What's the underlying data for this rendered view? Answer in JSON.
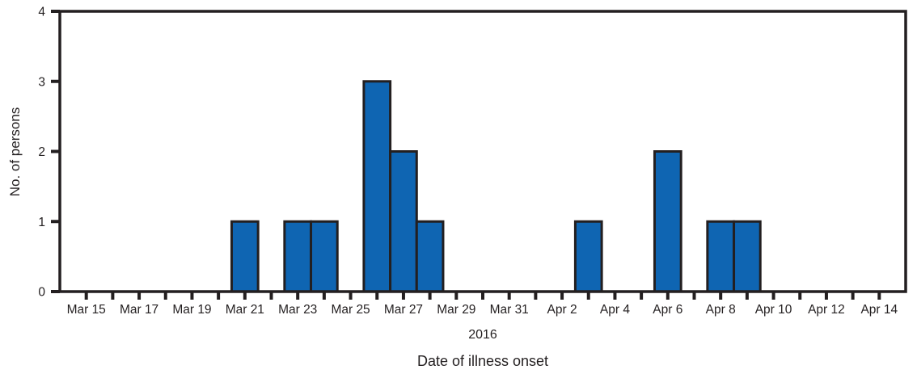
{
  "figure": {
    "background": "#ffffff"
  },
  "chart_data": {
    "type": "bar",
    "title": "",
    "ylabel": "No. of persons",
    "xlabel": "Date of illness onset",
    "x_period_label": "2016",
    "ylim": [
      0,
      4
    ],
    "yticks": [
      0,
      1,
      2,
      3,
      4
    ],
    "x_tick_label_every": 2,
    "grid": false,
    "legend": "none",
    "categories": [
      "Mar 15",
      "Mar 16",
      "Mar 17",
      "Mar 18",
      "Mar 19",
      "Mar 20",
      "Mar 21",
      "Mar 22",
      "Mar 23",
      "Mar 24",
      "Mar 25",
      "Mar 26",
      "Mar 27",
      "Mar 28",
      "Mar 29",
      "Mar 30",
      "Mar 31",
      "Apr 1",
      "Apr 2",
      "Apr 3",
      "Apr 4",
      "Apr 5",
      "Apr 6",
      "Apr 7",
      "Apr 8",
      "Apr 9",
      "Apr 10",
      "Apr 11",
      "Apr 12",
      "Apr 13",
      "Apr 14"
    ],
    "values": [
      0,
      0,
      0,
      0,
      0,
      0,
      1,
      0,
      1,
      1,
      0,
      3,
      2,
      1,
      0,
      0,
      0,
      0,
      0,
      1,
      0,
      0,
      2,
      0,
      1,
      1,
      0,
      0,
      0,
      0,
      0
    ],
    "colors": {
      "bar_fill": "#0f65b2",
      "bar_stroke": "#231f20",
      "axis": "#231f20",
      "text": "#231f20",
      "background": "#ffffff"
    }
  }
}
